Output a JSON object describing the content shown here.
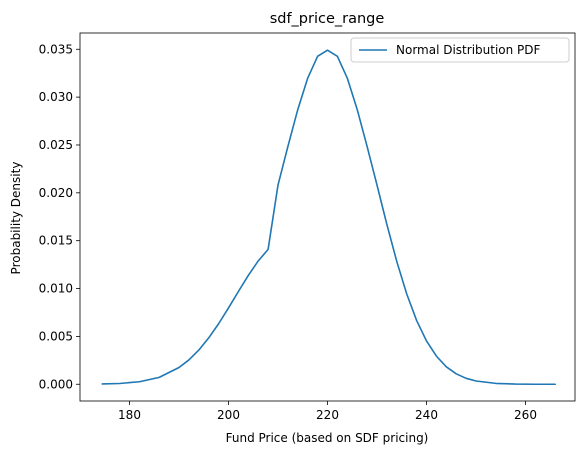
{
  "chart_data": {
    "type": "line",
    "title": "sdf_price_range",
    "xlabel": "Fund Price (based on SDF pricing)",
    "ylabel": "Probability Density",
    "xlim": [
      170.0,
      270.0
    ],
    "ylim": [
      -0.00175,
      0.0367
    ],
    "xticks": [
      180,
      200,
      220,
      240,
      260
    ],
    "xtick_labels": [
      "180",
      "200",
      "220",
      "240",
      "260"
    ],
    "yticks": [
      0.0,
      0.005,
      0.01,
      0.015,
      0.02,
      0.025,
      0.03,
      0.035
    ],
    "ytick_labels": [
      "0.000",
      "0.005",
      "0.010",
      "0.015",
      "0.020",
      "0.025",
      "0.030",
      "0.035"
    ],
    "grid": false,
    "legend_position": "top-right",
    "series": [
      {
        "name": "Normal Distribution PDF",
        "color": "#1f77b4",
        "x": [
          174.5,
          178,
          182,
          186,
          190,
          192,
          194,
          196,
          198,
          200,
          202,
          204,
          206,
          208,
          210,
          212,
          214,
          216,
          218,
          220,
          222,
          224,
          226,
          228,
          230,
          232,
          234,
          236,
          238,
          240,
          242,
          244,
          246,
          248,
          250,
          254,
          258,
          262,
          266
        ],
        "y": [
          3e-05,
          8e-05,
          0.00026,
          0.00072,
          0.00175,
          0.00254,
          0.00357,
          0.00484,
          0.00632,
          0.00797,
          0.00969,
          0.01137,
          0.01288,
          0.01409,
          0.02081,
          0.02485,
          0.02871,
          0.03198,
          0.03426,
          0.0349,
          0.03426,
          0.03198,
          0.02871,
          0.02485,
          0.02081,
          0.01668,
          0.01282,
          0.00944,
          0.00667,
          0.00452,
          0.00294,
          0.00182,
          0.00109,
          0.00062,
          0.00034,
          9e-05,
          2e-05,
          0.0,
          0.0
        ]
      }
    ]
  }
}
